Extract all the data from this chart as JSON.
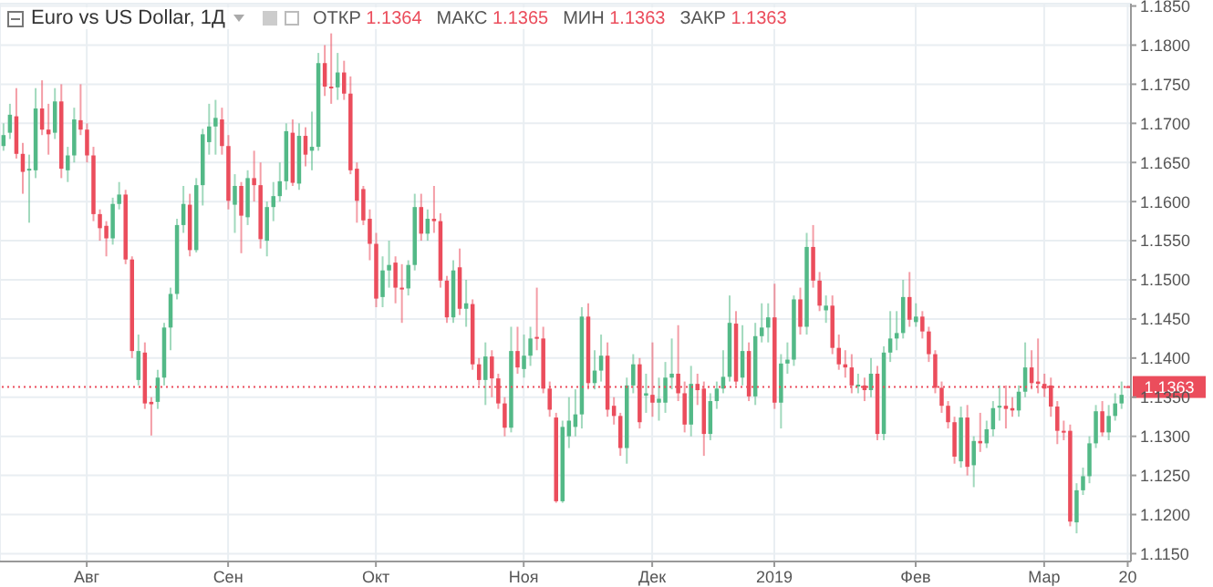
{
  "chart_data": {
    "type": "candlestick",
    "title": "Euro vs US Dollar, 1Д",
    "annotations": [
      "ОТКР 1.1364",
      "МАКС 1.1365",
      "МИН 1.1363",
      "ЗАКР 1.1363"
    ],
    "categories": [
      null,
      null,
      null,
      null,
      null,
      null,
      null,
      null,
      null,
      null,
      null,
      null,
      null,
      "Авг",
      null,
      null,
      null,
      null,
      null,
      null,
      null,
      null,
      null,
      null,
      null,
      null,
      null,
      null,
      null,
      null,
      null,
      null,
      null,
      null,
      null,
      "Сен",
      null,
      null,
      null,
      null,
      null,
      null,
      null,
      null,
      null,
      null,
      null,
      null,
      null,
      null,
      null,
      null,
      null,
      null,
      null,
      null,
      null,
      null,
      "Окт",
      null,
      null,
      null,
      null,
      null,
      null,
      null,
      null,
      null,
      null,
      null,
      null,
      null,
      null,
      null,
      null,
      null,
      null,
      null,
      null,
      null,
      null,
      "Ноя",
      null,
      null,
      null,
      null,
      null,
      null,
      null,
      null,
      null,
      null,
      null,
      null,
      null,
      null,
      null,
      null,
      null,
      null,
      null,
      "Дек",
      null,
      null,
      null,
      null,
      null,
      null,
      null,
      null,
      null,
      null,
      null,
      null,
      null,
      null,
      null,
      null,
      null,
      null,
      "2019",
      null,
      null,
      null,
      null,
      null,
      null,
      null,
      null,
      null,
      null,
      null,
      null,
      null,
      null,
      null,
      null,
      null,
      null,
      null,
      null,
      null,
      "Фев",
      null,
      null,
      null,
      null,
      null,
      null,
      null,
      null,
      null,
      null,
      null,
      null,
      null,
      null,
      null,
      null,
      null,
      null,
      null,
      "Мар",
      null,
      null,
      null,
      null,
      null,
      null,
      null,
      null,
      null,
      null,
      null,
      null,
      "20"
    ],
    "ohlc": [
      [
        1.1671,
        1.17,
        1.1665,
        1.1685
      ],
      [
        1.1688,
        1.1725,
        1.168,
        1.1711
      ],
      [
        1.1709,
        1.1745,
        1.1655,
        1.1661
      ],
      [
        1.1661,
        1.1675,
        1.161,
        1.1638
      ],
      [
        1.164,
        1.166,
        1.1573,
        1.1642
      ],
      [
        1.164,
        1.1745,
        1.163,
        1.1719
      ],
      [
        1.1719,
        1.1755,
        1.1685,
        1.1692
      ],
      [
        1.1692,
        1.1725,
        1.166,
        1.1686
      ],
      [
        1.1688,
        1.1745,
        1.168,
        1.1728
      ],
      [
        1.1728,
        1.175,
        1.163,
        1.1642
      ],
      [
        1.164,
        1.167,
        1.1625,
        1.1659
      ],
      [
        1.1659,
        1.172,
        1.165,
        1.1705
      ],
      [
        1.1704,
        1.175,
        1.1685,
        1.1692
      ],
      [
        1.1692,
        1.17,
        1.165,
        1.1659
      ],
      [
        1.1659,
        1.167,
        1.1575,
        1.1584
      ],
      [
        1.1584,
        1.159,
        1.155,
        1.1566
      ],
      [
        1.1569,
        1.1575,
        1.153,
        1.1553
      ],
      [
        1.1553,
        1.1605,
        1.1545,
        1.1597
      ],
      [
        1.1597,
        1.1625,
        1.159,
        1.1609
      ],
      [
        1.1609,
        1.1615,
        1.152,
        1.1526
      ],
      [
        1.1526,
        1.153,
        1.14,
        1.1409
      ],
      [
        1.1372,
        1.143,
        1.1365,
        1.1409
      ],
      [
        1.1407,
        1.142,
        1.1335,
        1.1342
      ],
      [
        1.1344,
        1.135,
        1.1301,
        1.1341
      ],
      [
        1.1344,
        1.1385,
        1.1335,
        1.1375
      ],
      [
        1.1375,
        1.1445,
        1.1365,
        1.1439
      ],
      [
        1.1439,
        1.149,
        1.141,
        1.1482
      ],
      [
        1.1482,
        1.1578,
        1.1475,
        1.157
      ],
      [
        1.157,
        1.162,
        1.156,
        1.1597
      ],
      [
        1.1596,
        1.161,
        1.153,
        1.1538
      ],
      [
        1.1538,
        1.163,
        1.1535,
        1.1621
      ],
      [
        1.1621,
        1.1693,
        1.1595,
        1.1686
      ],
      [
        1.1676,
        1.1725,
        1.166,
        1.1696
      ],
      [
        1.1696,
        1.173,
        1.166,
        1.1707
      ],
      [
        1.1705,
        1.172,
        1.166,
        1.1671
      ],
      [
        1.1671,
        1.1685,
        1.159,
        1.1601
      ],
      [
        1.1596,
        1.1635,
        1.156,
        1.162
      ],
      [
        1.162,
        1.1625,
        1.1534,
        1.1582
      ],
      [
        1.158,
        1.164,
        1.157,
        1.163
      ],
      [
        1.163,
        1.1665,
        1.16,
        1.1621
      ],
      [
        1.1621,
        1.165,
        1.154,
        1.1552
      ],
      [
        1.155,
        1.16,
        1.153,
        1.1593
      ],
      [
        1.1593,
        1.1625,
        1.1575,
        1.1607
      ],
      [
        1.1607,
        1.165,
        1.16,
        1.1626
      ],
      [
        1.1626,
        1.17,
        1.1615,
        1.169
      ],
      [
        1.1688,
        1.1705,
        1.162,
        1.1624
      ],
      [
        1.1623,
        1.17,
        1.1615,
        1.1684
      ],
      [
        1.1684,
        1.1695,
        1.1645,
        1.166
      ],
      [
        1.1665,
        1.1715,
        1.164,
        1.167
      ],
      [
        1.167,
        1.179,
        1.1665,
        1.1777
      ],
      [
        1.1777,
        1.18,
        1.1735,
        1.1747
      ],
      [
        1.1747,
        1.1815,
        1.1725,
        1.1746
      ],
      [
        1.1746,
        1.179,
        1.173,
        1.1765
      ],
      [
        1.1765,
        1.178,
        1.173,
        1.1738
      ],
      [
        1.1738,
        1.176,
        1.1635,
        1.164
      ],
      [
        1.1642,
        1.165,
        1.1573,
        1.1601
      ],
      [
        1.1616,
        1.162,
        1.157,
        1.1576
      ],
      [
        1.1578,
        1.159,
        1.1525,
        1.1546
      ],
      [
        1.1546,
        1.156,
        1.1465,
        1.1476
      ],
      [
        1.1478,
        1.153,
        1.1465,
        1.1512
      ],
      [
        1.1512,
        1.155,
        1.149,
        1.1519
      ],
      [
        1.1522,
        1.153,
        1.147,
        1.149
      ],
      [
        1.149,
        1.152,
        1.1445,
        1.1489
      ],
      [
        1.1489,
        1.1525,
        1.148,
        1.1519
      ],
      [
        1.1519,
        1.161,
        1.1512,
        1.1593
      ],
      [
        1.1593,
        1.161,
        1.155,
        1.1559
      ],
      [
        1.1559,
        1.159,
        1.155,
        1.1578
      ],
      [
        1.1578,
        1.162,
        1.156,
        1.1575
      ],
      [
        1.1575,
        1.1585,
        1.149,
        1.1499
      ],
      [
        1.1499,
        1.1505,
        1.1445,
        1.1452
      ],
      [
        1.1452,
        1.1525,
        1.1445,
        1.1512
      ],
      [
        1.1516,
        1.154,
        1.1455,
        1.1463
      ],
      [
        1.1463,
        1.15,
        1.144,
        1.147
      ],
      [
        1.1469,
        1.1475,
        1.1385,
        1.1392
      ],
      [
        1.1392,
        1.14,
        1.1365,
        1.1372
      ],
      [
        1.1372,
        1.142,
        1.134,
        1.1402
      ],
      [
        1.1402,
        1.141,
        1.135,
        1.1374
      ],
      [
        1.1374,
        1.138,
        1.1335,
        1.1342
      ],
      [
        1.1342,
        1.135,
        1.13,
        1.1311
      ],
      [
        1.1311,
        1.144,
        1.1305,
        1.1409
      ],
      [
        1.1409,
        1.144,
        1.138,
        1.1388
      ],
      [
        1.1386,
        1.143,
        1.1375,
        1.1403
      ],
      [
        1.1403,
        1.144,
        1.139,
        1.1425
      ],
      [
        1.1427,
        1.149,
        1.141,
        1.1425
      ],
      [
        1.1425,
        1.144,
        1.1355,
        1.1361
      ],
      [
        1.1361,
        1.137,
        1.1325,
        1.1334
      ],
      [
        1.1324,
        1.133,
        1.1215,
        1.1217
      ],
      [
        1.1217,
        1.132,
        1.1215,
        1.1312
      ],
      [
        1.13,
        1.135,
        1.1285,
        1.132
      ],
      [
        1.1312,
        1.136,
        1.13,
        1.1328
      ],
      [
        1.1328,
        1.1465,
        1.131,
        1.1453
      ],
      [
        1.1453,
        1.147,
        1.136,
        1.1368
      ],
      [
        1.1368,
        1.141,
        1.136,
        1.1384
      ],
      [
        1.1384,
        1.143,
        1.137,
        1.1403
      ],
      [
        1.1403,
        1.142,
        1.1325,
        1.1334
      ],
      [
        1.1339,
        1.135,
        1.1315,
        1.1326
      ],
      [
        1.1326,
        1.133,
        1.1275,
        1.1285
      ],
      [
        1.1285,
        1.1375,
        1.1265,
        1.1365
      ],
      [
        1.1365,
        1.1405,
        1.1355,
        1.1392
      ],
      [
        1.1392,
        1.14,
        1.131,
        1.1318
      ],
      [
        1.1352,
        1.138,
        1.133,
        1.1355
      ],
      [
        1.1353,
        1.142,
        1.1325,
        1.1343
      ],
      [
        1.1343,
        1.1375,
        1.132,
        1.1348
      ],
      [
        1.1343,
        1.1395,
        1.133,
        1.1375
      ],
      [
        1.1375,
        1.1425,
        1.136,
        1.138
      ],
      [
        1.138,
        1.1442,
        1.1345,
        1.1355
      ],
      [
        1.1355,
        1.137,
        1.1305,
        1.1315
      ],
      [
        1.1315,
        1.139,
        1.13,
        1.1367
      ],
      [
        1.1367,
        1.138,
        1.134,
        1.1359
      ],
      [
        1.1361,
        1.137,
        1.1275,
        1.1303
      ],
      [
        1.1303,
        1.1355,
        1.1295,
        1.1345
      ],
      [
        1.1345,
        1.137,
        1.1335,
        1.1361
      ],
      [
        1.1361,
        1.141,
        1.1355,
        1.1376
      ],
      [
        1.1376,
        1.148,
        1.137,
        1.1445
      ],
      [
        1.1444,
        1.146,
        1.1365,
        1.137
      ],
      [
        1.1375,
        1.1442,
        1.1365,
        1.1409
      ],
      [
        1.1409,
        1.142,
        1.1345,
        1.1351
      ],
      [
        1.1351,
        1.1445,
        1.134,
        1.1428
      ],
      [
        1.1428,
        1.147,
        1.142,
        1.1439
      ],
      [
        1.1439,
        1.147,
        1.142,
        1.1452
      ],
      [
        1.1452,
        1.1495,
        1.1335,
        1.1343
      ],
      [
        1.1343,
        1.1405,
        1.131,
        1.1393
      ],
      [
        1.1393,
        1.142,
        1.138,
        1.1398
      ],
      [
        1.1398,
        1.148,
        1.139,
        1.1475
      ],
      [
        1.1475,
        1.149,
        1.143,
        1.144
      ],
      [
        1.144,
        1.156,
        1.143,
        1.1542
      ],
      [
        1.1542,
        1.157,
        1.149,
        1.1499
      ],
      [
        1.1499,
        1.151,
        1.146,
        1.1467
      ],
      [
        1.1461,
        1.148,
        1.1445,
        1.1467
      ],
      [
        1.1467,
        1.148,
        1.1405,
        1.1413
      ],
      [
        1.1413,
        1.143,
        1.1385,
        1.1392
      ],
      [
        1.1392,
        1.141,
        1.1375,
        1.1388
      ],
      [
        1.1388,
        1.1405,
        1.1355,
        1.1365
      ],
      [
        1.1364,
        1.138,
        1.1355,
        1.1366
      ],
      [
        1.1365,
        1.1375,
        1.1345,
        1.1359
      ],
      [
        1.1359,
        1.14,
        1.135,
        1.138
      ],
      [
        1.138,
        1.139,
        1.1295,
        1.1303
      ],
      [
        1.1303,
        1.1415,
        1.1295,
        1.1407
      ],
      [
        1.1407,
        1.146,
        1.1395,
        1.1425
      ],
      [
        1.1425,
        1.146,
        1.141,
        1.1432
      ],
      [
        1.1432,
        1.15,
        1.1425,
        1.1478
      ],
      [
        1.1478,
        1.151,
        1.144,
        1.1449
      ],
      [
        1.1446,
        1.147,
        1.144,
        1.1453
      ],
      [
        1.1453,
        1.146,
        1.1425,
        1.1434
      ],
      [
        1.1434,
        1.144,
        1.1395,
        1.1405
      ],
      [
        1.1405,
        1.141,
        1.1355,
        1.1362
      ],
      [
        1.1362,
        1.137,
        1.133,
        1.1339
      ],
      [
        1.1339,
        1.1345,
        1.131,
        1.1318
      ],
      [
        1.1318,
        1.1325,
        1.1265,
        1.1274
      ],
      [
        1.1268,
        1.1338,
        1.126,
        1.1324
      ],
      [
        1.1324,
        1.134,
        1.125,
        1.1261
      ],
      [
        1.1263,
        1.13,
        1.1235,
        1.1294
      ],
      [
        1.1294,
        1.133,
        1.128,
        1.1291
      ],
      [
        1.1291,
        1.132,
        1.1285,
        1.1309
      ],
      [
        1.1309,
        1.1345,
        1.13,
        1.1336
      ],
      [
        1.1337,
        1.1365,
        1.132,
        1.1339
      ],
      [
        1.1339,
        1.1365,
        1.131,
        1.1335
      ],
      [
        1.1336,
        1.135,
        1.1325,
        1.1333
      ],
      [
        1.1333,
        1.1365,
        1.1325,
        1.1357
      ],
      [
        1.1357,
        1.142,
        1.135,
        1.1388
      ],
      [
        1.1388,
        1.141,
        1.136,
        1.1368
      ],
      [
        1.137,
        1.1425,
        1.1355,
        1.1367
      ],
      [
        1.1367,
        1.138,
        1.135,
        1.1361
      ],
      [
        1.1365,
        1.1375,
        1.1325,
        1.1338
      ],
      [
        1.1338,
        1.1345,
        1.129,
        1.1307
      ],
      [
        1.1307,
        1.132,
        1.1295,
        1.1305
      ],
      [
        1.1307,
        1.1315,
        1.1185,
        1.1191
      ],
      [
        1.119,
        1.124,
        1.1176,
        1.1231
      ],
      [
        1.1231,
        1.126,
        1.1225,
        1.1249
      ],
      [
        1.1249,
        1.13,
        1.124,
        1.1291
      ],
      [
        1.1291,
        1.134,
        1.1285,
        1.1332
      ],
      [
        1.1332,
        1.1345,
        1.13,
        1.1305
      ],
      [
        1.1305,
        1.134,
        1.1295,
        1.1326
      ],
      [
        1.1326,
        1.1355,
        1.132,
        1.1342
      ],
      [
        1.1342,
        1.137,
        1.1335,
        1.1353
      ],
      [
        1.1364,
        1.1365,
        1.1363,
        1.1363
      ]
    ],
    "colors": [
      "#53b987",
      "#53b987",
      "#eb4d5c",
      "#eb4d5c",
      "#53b987",
      "#53b987",
      "#eb4d5c",
      "#eb4d5c",
      "#53b987",
      "#eb4d5c",
      "#53b987",
      "#53b987",
      "#eb4d5c",
      "#eb4d5c",
      "#eb4d5c",
      "#eb4d5c",
      "#eb4d5c",
      "#53b987",
      "#53b987",
      "#eb4d5c",
      "#eb4d5c",
      "#53b987",
      "#eb4d5c",
      "#eb4d5c",
      "#53b987",
      "#53b987",
      "#53b987",
      "#53b987",
      "#53b987",
      "#eb4d5c",
      "#53b987",
      "#53b987",
      "#53b987",
      "#53b987",
      "#eb4d5c",
      "#eb4d5c",
      "#53b987",
      "#eb4d5c",
      "#53b987",
      "#eb4d5c",
      "#eb4d5c",
      "#53b987",
      "#53b987",
      "#53b987",
      "#53b987",
      "#eb4d5c",
      "#53b987",
      "#eb4d5c",
      "#53b987",
      "#53b987",
      "#eb4d5c",
      "#eb4d5c",
      "#53b987",
      "#eb4d5c",
      "#eb4d5c",
      "#eb4d5c",
      "#eb4d5c",
      "#eb4d5c",
      "#eb4d5c",
      "#53b987",
      "#53b987",
      "#eb4d5c",
      "#eb4d5c",
      "#53b987",
      "#53b987",
      "#eb4d5c",
      "#53b987",
      "#eb4d5c",
      "#eb4d5c",
      "#eb4d5c",
      "#53b987",
      "#eb4d5c",
      "#53b987",
      "#eb4d5c",
      "#eb4d5c",
      "#53b987",
      "#eb4d5c",
      "#eb4d5c",
      "#eb4d5c",
      "#53b987",
      "#eb4d5c",
      "#53b987",
      "#53b987",
      "#eb4d5c",
      "#eb4d5c",
      "#eb4d5c",
      "#eb4d5c",
      "#53b987",
      "#53b987",
      "#53b987",
      "#53b987",
      "#eb4d5c",
      "#53b987",
      "#53b987",
      "#eb4d5c",
      "#eb4d5c",
      "#eb4d5c",
      "#53b987",
      "#53b987",
      "#eb4d5c",
      "#53b987",
      "#eb4d5c",
      "#53b987",
      "#53b987",
      "#53b987",
      "#eb4d5c",
      "#eb4d5c",
      "#53b987",
      "#eb4d5c",
      "#eb4d5c",
      "#53b987",
      "#53b987",
      "#53b987",
      "#53b987",
      "#eb4d5c",
      "#53b987",
      "#eb4d5c",
      "#53b987",
      "#53b987",
      "#53b987",
      "#eb4d5c",
      "#53b987",
      "#53b987",
      "#53b987",
      "#eb4d5c",
      "#53b987",
      "#eb4d5c",
      "#eb4d5c",
      "#53b987",
      "#eb4d5c",
      "#eb4d5c",
      "#eb4d5c",
      "#eb4d5c",
      "#53b987",
      "#eb4d5c",
      "#53b987",
      "#eb4d5c",
      "#53b987",
      "#53b987",
      "#53b987",
      "#53b987",
      "#eb4d5c",
      "#53b987",
      "#eb4d5c",
      "#eb4d5c",
      "#eb4d5c",
      "#eb4d5c",
      "#eb4d5c",
      "#eb4d5c",
      "#53b987",
      "#eb4d5c",
      "#53b987",
      "#eb4d5c",
      "#53b987",
      "#53b987",
      "#53b987",
      "#eb4d5c",
      "#eb4d5c",
      "#53b987",
      "#53b987",
      "#eb4d5c",
      "#eb4d5c",
      "#eb4d5c",
      "#eb4d5c",
      "#eb4d5c",
      "#eb4d5c",
      "#eb4d5c",
      "#53b987",
      "#53b987",
      "#53b987",
      "#53b987",
      "#eb4d5c",
      "#53b987",
      "#53b987",
      "#53b987",
      "#eb4d5c"
    ],
    "ylim": [
      1.114,
      1.1853
    ],
    "yticks": [
      {
        "value": 1.115,
        "label": "1.1150"
      },
      {
        "value": 1.12,
        "label": "1.1200"
      },
      {
        "value": 1.125,
        "label": "1.1250"
      },
      {
        "value": 1.13,
        "label": "1.1300"
      },
      {
        "value": 1.135,
        "label": "1.1350"
      },
      {
        "value": 1.14,
        "label": "1.1400"
      },
      {
        "value": 1.145,
        "label": "1.1450"
      },
      {
        "value": 1.15,
        "label": "1.1500"
      },
      {
        "value": 1.155,
        "label": "1.1550"
      },
      {
        "value": 1.16,
        "label": "1.1600"
      },
      {
        "value": 1.165,
        "label": "1.1650"
      },
      {
        "value": 1.17,
        "label": "1.1700"
      },
      {
        "value": 1.175,
        "label": "1.1750"
      },
      {
        "value": 1.18,
        "label": "1.1800"
      },
      {
        "value": 1.185,
        "label": "1.1850"
      }
    ],
    "ref_lines": [
      {
        "axis": "y",
        "value": 1.1363,
        "label": "1.1363",
        "color": "#eb4d5c",
        "line_style": "dotted"
      }
    ],
    "grid": true
  }
}
